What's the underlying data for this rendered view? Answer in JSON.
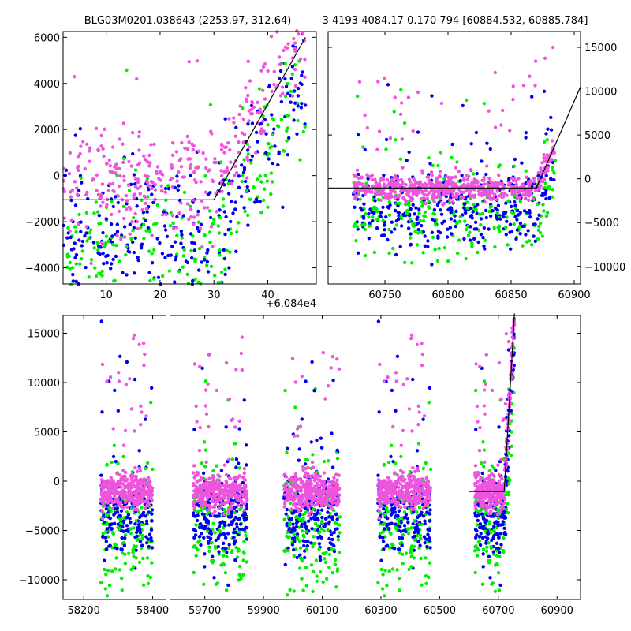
{
  "chart_data": [
    {
      "id": "top-left",
      "type": "scatter",
      "title_left": "BLG03M0201.038643 (2253.97, 312.64)",
      "xlim": [
        2,
        49
      ],
      "ylim": [
        -4700,
        6250
      ],
      "x_ticks": [
        10,
        20,
        30,
        40
      ],
      "x_tick_labels": [
        "10",
        "20",
        "30",
        "40"
      ],
      "x_offset_label": "+6.084e4",
      "y_ticks": [
        -4000,
        -2000,
        0,
        2000,
        4000,
        6000
      ],
      "y_tick_labels": [
        "−4000",
        "−2000",
        "0",
        "2000",
        "4000",
        "6000"
      ],
      "y_axis_side": "left",
      "model_line": {
        "x": [
          2,
          30,
          47
        ],
        "y": [
          -1050,
          -1050,
          6000
        ]
      },
      "series": [
        {
          "name": "blue",
          "color": "#0000ee"
        },
        {
          "name": "green",
          "color": "#00ee00"
        },
        {
          "name": "violet",
          "color": "#ee55dd"
        }
      ]
    },
    {
      "id": "top-right",
      "type": "scatter",
      "title_right": "3 4193 4084.17 0.170 794 [60884.532, 60885.784]",
      "xlim": [
        60705,
        60905
      ],
      "ylim": [
        -12000,
        16800
      ],
      "x_ticks": [
        60750,
        60800,
        60850,
        60900
      ],
      "x_tick_labels": [
        "60750",
        "60800",
        "60850",
        "60900"
      ],
      "y_ticks": [
        -10000,
        -5000,
        0,
        5000,
        10000,
        15000
      ],
      "y_tick_labels": [
        "−10000",
        "−5000",
        "0",
        "5000",
        "10000",
        "15000"
      ],
      "y_axis_side": "right",
      "model_line": {
        "x": [
          60705,
          60870,
          60905
        ],
        "y": [
          -1050,
          -1050,
          10500
        ]
      },
      "series": [
        {
          "name": "blue",
          "color": "#0000ee"
        },
        {
          "name": "green",
          "color": "#00ee00"
        },
        {
          "name": "violet",
          "color": "#ee55dd"
        }
      ]
    },
    {
      "id": "bottom",
      "type": "scatter",
      "segments": [
        {
          "xlim": [
            58140,
            58440
          ],
          "ticks": [
            58200,
            58400
          ],
          "tick_labels": [
            "58200",
            "58400"
          ]
        },
        {
          "xlim": [
            59580,
            60980
          ],
          "ticks": [
            59700,
            59900,
            60100,
            60300,
            60500,
            60700,
            60900
          ],
          "tick_labels": [
            "59700",
            "59900",
            "60100",
            "60300",
            "60500",
            "60700",
            "60900"
          ]
        }
      ],
      "ylim": [
        -12000,
        16800
      ],
      "y_ticks": [
        -10000,
        -5000,
        0,
        5000,
        10000,
        15000
      ],
      "y_tick_labels": [
        "−10000",
        "−5000",
        "0",
        "5000",
        "10000",
        "15000"
      ],
      "y_axis_side": "left",
      "data_clusters": [
        {
          "x_start": 58250,
          "x_end": 58400
        },
        {
          "x_start": 59660,
          "x_end": 59845
        },
        {
          "x_start": 59970,
          "x_end": 60160
        },
        {
          "x_start": 60290,
          "x_end": 60470
        },
        {
          "x_start": 60620,
          "x_end": 60755
        }
      ],
      "model_line": {
        "x": [
          60600,
          60720,
          60755
        ],
        "y": [
          -1050,
          -1050,
          17000
        ]
      },
      "series": [
        {
          "name": "blue",
          "color": "#0000ee"
        },
        {
          "name": "green",
          "color": "#00ee00"
        },
        {
          "name": "violet",
          "color": "#ee55dd"
        }
      ]
    }
  ]
}
